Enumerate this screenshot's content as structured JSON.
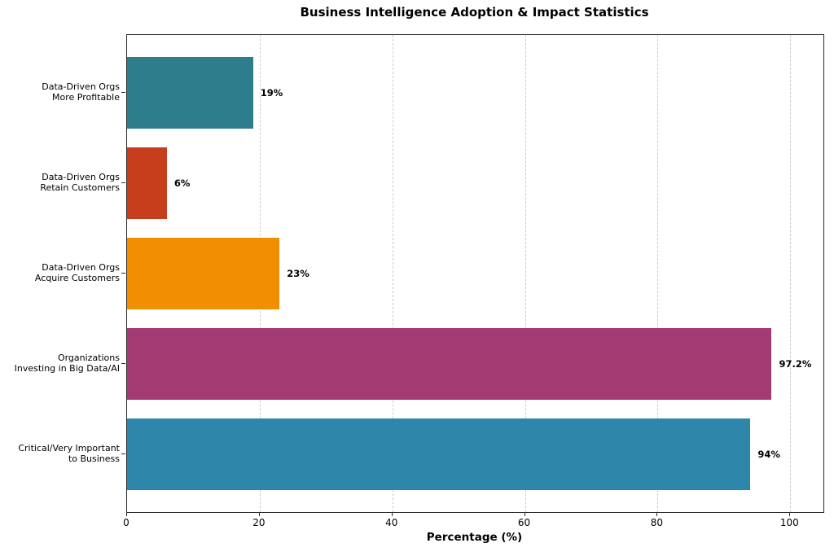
{
  "title": "Business Intelligence Adoption & Impact Statistics",
  "chart_data": {
    "type": "bar",
    "orientation": "horizontal",
    "title": "Business Intelligence Adoption & Impact Statistics",
    "xlabel": "Percentage (%)",
    "ylabel": "",
    "categories": [
      [
        "Data-Driven Orgs",
        "More Profitable"
      ],
      [
        "Data-Driven Orgs",
        "Retain Customers"
      ],
      [
        "Data-Driven Orgs",
        "Acquire Customers"
      ],
      [
        "Organizations",
        "Investing in Big Data/AI"
      ],
      [
        "Critical/Very Important",
        "to Business"
      ]
    ],
    "values": [
      19,
      6,
      23,
      97.2,
      94
    ],
    "value_labels": [
      "19%",
      "6%",
      "23%",
      "97.2%",
      "94%"
    ],
    "colors": [
      "#2E7D8C",
      "#C73E1D",
      "#F18F01",
      "#A23B72",
      "#2E86AB"
    ],
    "xticks": [
      0,
      20,
      40,
      60,
      80,
      100
    ],
    "xlim": [
      0,
      105
    ],
    "grid": {
      "axis": "x",
      "style": "dashed",
      "color": "#cccccc"
    },
    "spine_color": "#2b2b2b",
    "legend": "none",
    "background": "#ffffff"
  }
}
